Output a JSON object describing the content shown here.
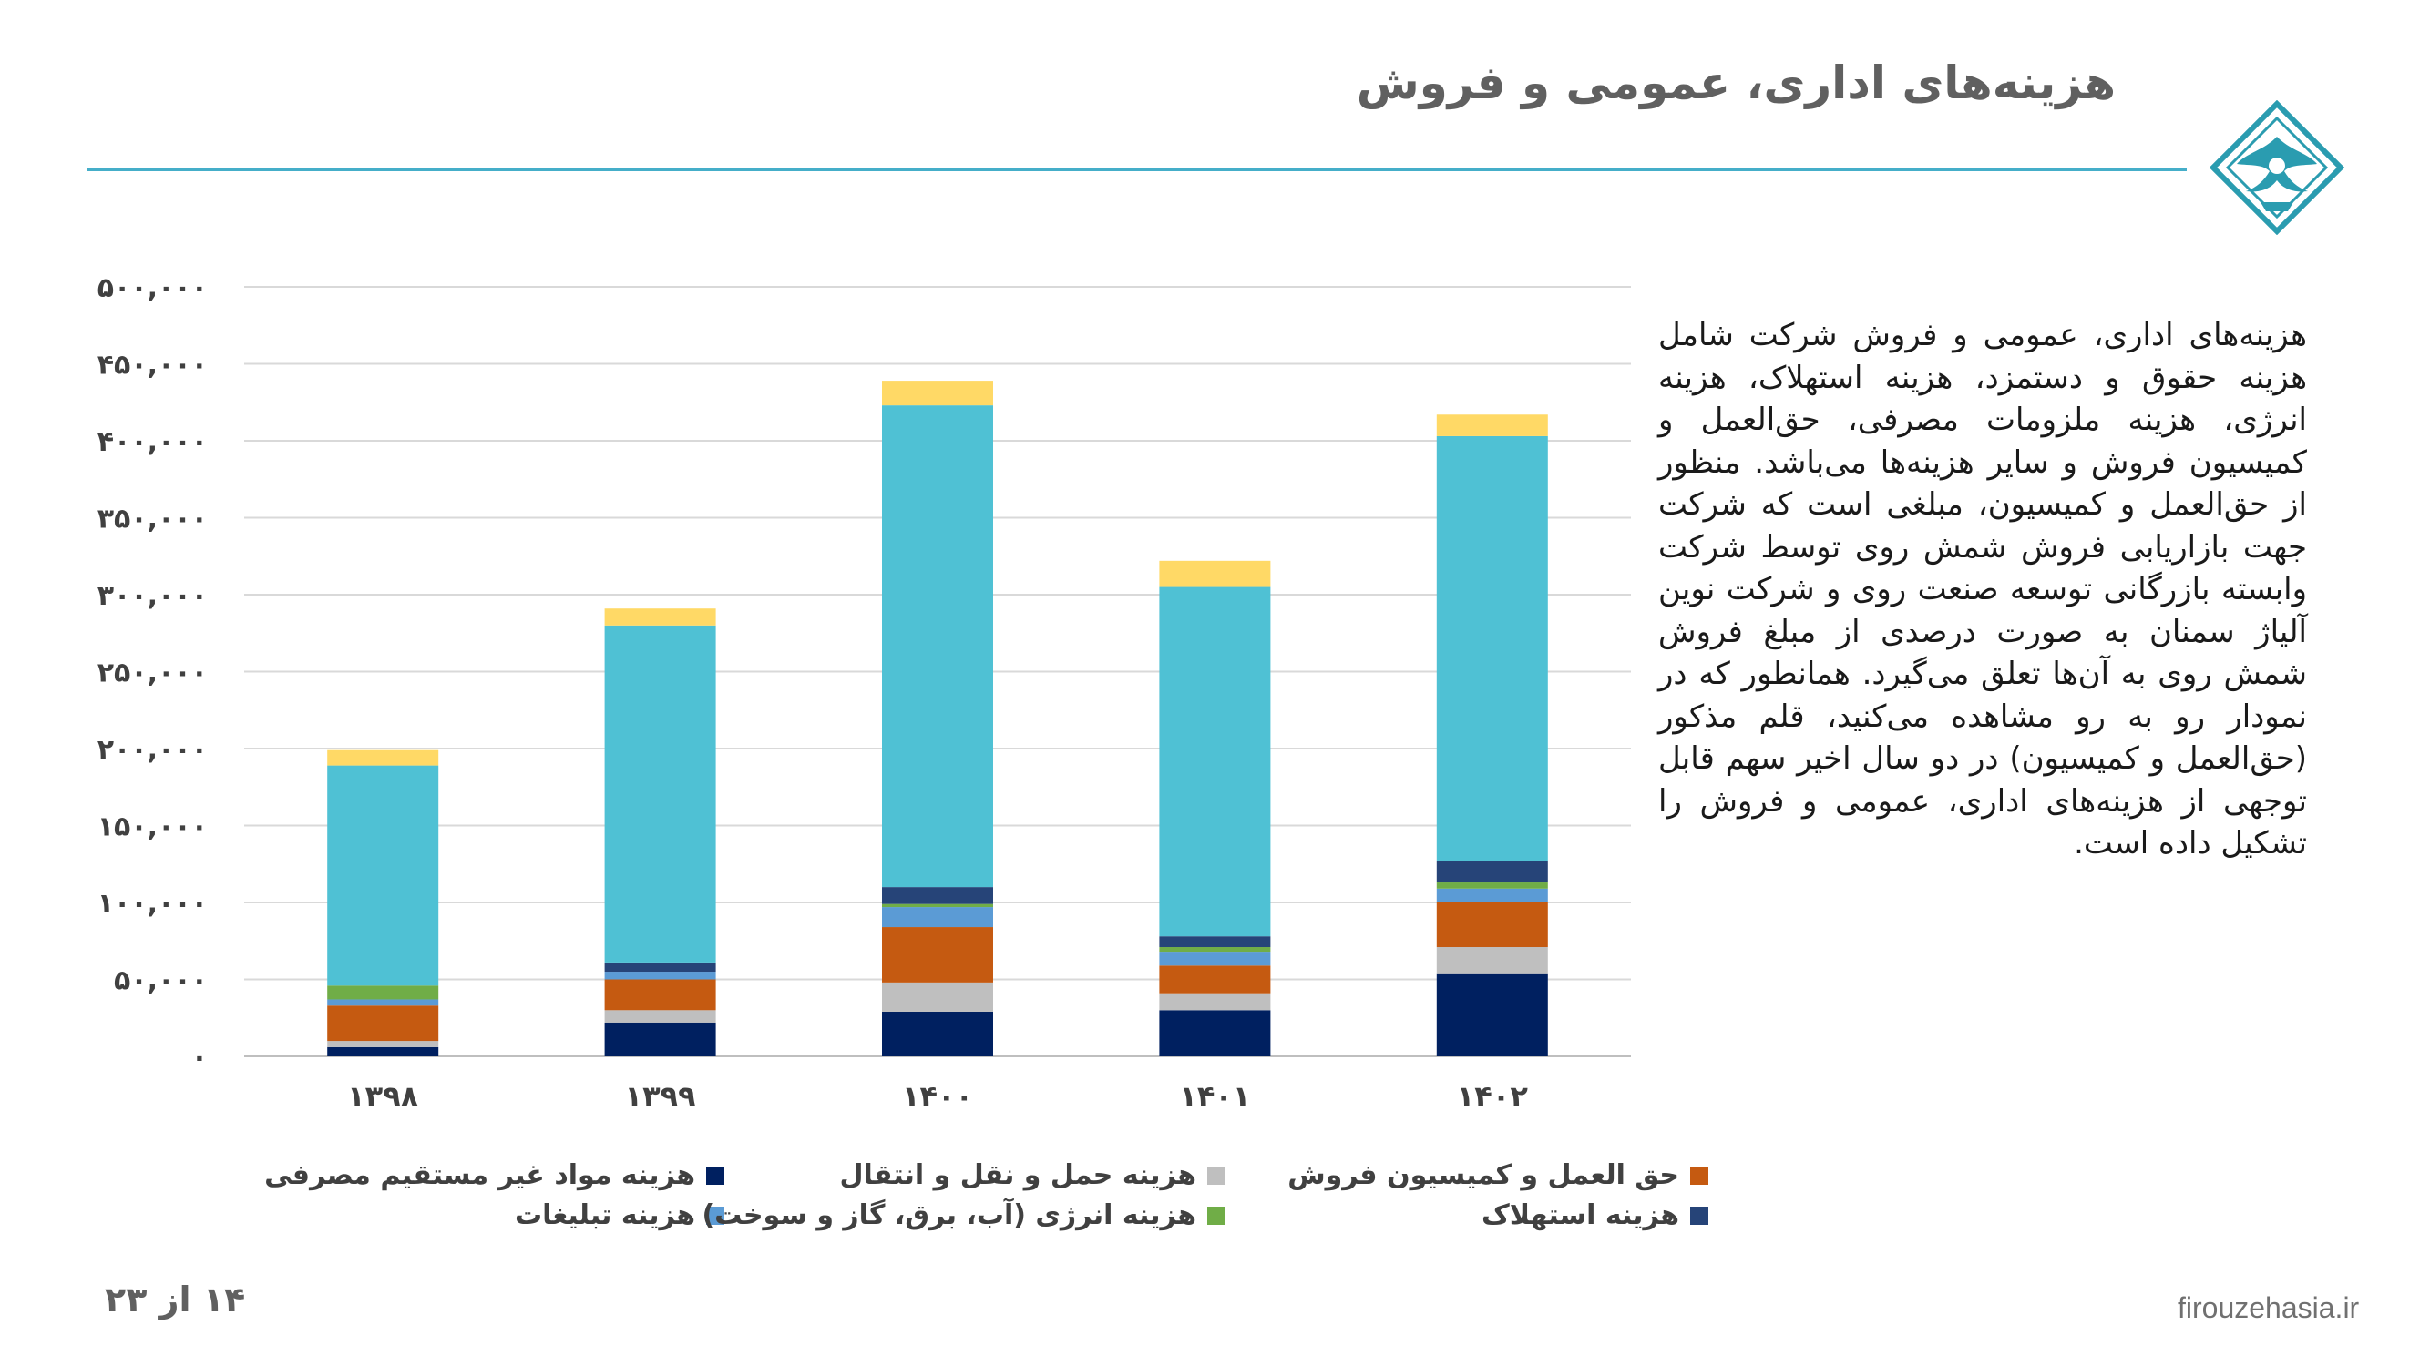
{
  "header": {
    "title": "هزینه‌های اداری، عمومی و فروش",
    "accent_color": "#45aec9",
    "logo_icon": "firouzeh-logo-icon"
  },
  "body_text": " هزینه‌های اداری، عمومی و فروش شرکت شامل هزینه حقوق و دستمزد، هزینه استهلاک، هزینه انرژی، هزینه ملزومات مصرفی، حق‌العمل و کمیسیون فروش و سایر هزینه‌ها می‌باشد. منظور از حق‌العمل و کمیسیون، مبلغی است که شرکت جهت بازاریابی فروش شمش روی توسط شرکت وابسته بازرگانی توسعه صنعت روی و شرکت نوین آلیاژ سمنان به صورت درصدی از مبلغ فروش شمش روی به آن‌ها تعلق می‌گیرد. همانطور که در نمودار رو به رو مشاهده می‌کنید، قلم مذکور (حق‌العمل و کمیسیون) در دو سال اخیر سهم قابل توجهی از هزینه‌های اداری، عمومی و فروش را تشکیل داده است.",
  "chart_data": {
    "type": "bar",
    "stacked": true,
    "categories": [
      "۱۳۹۸",
      "۱۳۹۹",
      "۱۴۰۰",
      "۱۴۰۱",
      "۱۴۰۲"
    ],
    "ylim": [
      0,
      500000
    ],
    "yticks": [
      0,
      50000,
      100000,
      150000,
      200000,
      250000,
      300000,
      350000,
      400000,
      450000,
      500000
    ],
    "ytick_labels": [
      "۰",
      "۵۰,۰۰۰",
      "۱۰۰,۰۰۰",
      "۱۵۰,۰۰۰",
      "۲۰۰,۰۰۰",
      "۲۵۰,۰۰۰",
      "۳۰۰,۰۰۰",
      "۳۵۰,۰۰۰",
      "۴۰۰,۰۰۰",
      "۴۵۰,۰۰۰",
      "۵۰۰,۰۰۰"
    ],
    "grid": true,
    "legend_position": "bottom",
    "series": [
      {
        "name": "هزینه مواد غیر مستقیم مصرفی",
        "color": "#002060",
        "values": [
          6000,
          22000,
          29000,
          30000,
          54000
        ]
      },
      {
        "name": "هزینه حمل و نقل و انتقال",
        "color": "#bfbfbf",
        "values": [
          4000,
          8000,
          19000,
          11000,
          17000
        ]
      },
      {
        "name": "حق العمل و کمیسیون فروش",
        "color": "#c55a11",
        "values": [
          23000,
          20000,
          36000,
          18000,
          29000
        ]
      },
      {
        "name": "هزینه تبلیغات",
        "color": "#5b9bd5",
        "values": [
          4000,
          5000,
          13000,
          9000,
          9000
        ]
      },
      {
        "name": "هزینه انرژی (آب، برق، گاز و سوخت)",
        "color": "#70ad47",
        "values": [
          9000,
          0,
          2000,
          3000,
          4000
        ]
      },
      {
        "name": "هزینه استهلاک",
        "color": "#264478",
        "values": [
          0,
          6000,
          11000,
          7000,
          14000
        ]
      },
      {
        "name": "",
        "color": "#4fc1d4",
        "values": [
          143000,
          219000,
          313000,
          227000,
          276000
        ]
      },
      {
        "name": "",
        "color": "#ffd966",
        "values": [
          10000,
          11000,
          16000,
          17000,
          14000
        ]
      }
    ]
  },
  "footer": {
    "page_number": "۱۴ از ۲۳",
    "website": "firouzehasia.ir"
  }
}
